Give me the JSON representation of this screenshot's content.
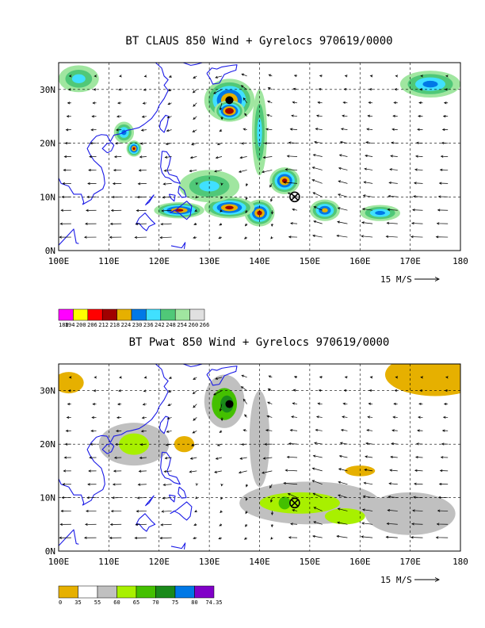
{
  "chart_data": [
    {
      "type": "heatmap",
      "title": "BT CLAUS 850 Wind + Gyrelocs 970619/0000",
      "x_ticks": [
        "100E",
        "110E",
        "120E",
        "130E",
        "140E",
        "150E",
        "160E",
        "170E",
        "180"
      ],
      "y_ticks": [
        "0N",
        "10N",
        "20N",
        "30N"
      ],
      "xlim": [
        100,
        180
      ],
      "ylim": [
        0,
        35
      ],
      "grid": true,
      "reference_vector_label": "15 M/S",
      "colorbar_labels": [
        "188",
        "194",
        "200",
        "206",
        "212",
        "218",
        "224",
        "230",
        "236",
        "242",
        "248",
        "254",
        "260",
        "266"
      ],
      "colorbar_colors": [
        "#ff00ff",
        "#ffff00",
        "#ff0000",
        "#a00000",
        "#e6b000",
        "#0078e6",
        "#40e0ff",
        "#50c878",
        "#a0e6a0",
        "#e0e0e0"
      ],
      "gyre_centers": [
        {
          "lon": 134,
          "lat": 28,
          "marker": "filled-circle"
        },
        {
          "lon": 147,
          "lat": 10,
          "marker": "circle-x"
        }
      ],
      "cloud_features": [
        {
          "lon": 134,
          "lat": 28,
          "rx": 5,
          "ry": 4,
          "peak": 3
        },
        {
          "lon": 134,
          "lat": 26,
          "rx": 3,
          "ry": 2,
          "peak": 4
        },
        {
          "lon": 145,
          "lat": 13,
          "rx": 3,
          "ry": 2.5,
          "peak": 3
        },
        {
          "lon": 140,
          "lat": 7,
          "rx": 3,
          "ry": 2.5,
          "peak": 3
        },
        {
          "lon": 134,
          "lat": 8,
          "rx": 5,
          "ry": 2,
          "peak": 3
        },
        {
          "lon": 124,
          "lat": 7.5,
          "rx": 5,
          "ry": 1.5,
          "peak": 3
        },
        {
          "lon": 115,
          "lat": 19,
          "rx": 1.5,
          "ry": 1.5,
          "peak": 3
        },
        {
          "lon": 153,
          "lat": 7.5,
          "rx": 3,
          "ry": 2,
          "peak": 2
        },
        {
          "lon": 164,
          "lat": 7,
          "rx": 4,
          "ry": 1.5,
          "peak": 1
        },
        {
          "lon": 174,
          "lat": 31,
          "rx": 6,
          "ry": 2.5,
          "peak": 1
        },
        {
          "lon": 113,
          "lat": 22,
          "rx": 2,
          "ry": 2,
          "peak": 1
        },
        {
          "lon": 104,
          "lat": 32,
          "rx": 4,
          "ry": 2.5,
          "peak": 0
        },
        {
          "lon": 130,
          "lat": 12,
          "rx": 6,
          "ry": 3,
          "peak": 0
        },
        {
          "lon": 140,
          "lat": 22,
          "rx": 1.5,
          "ry": 8,
          "peak": 0
        }
      ]
    },
    {
      "type": "heatmap",
      "title": "BT Pwat 850 Wind + Gyrelocs 970619/0000",
      "x_ticks": [
        "100E",
        "110E",
        "120E",
        "130E",
        "140E",
        "150E",
        "160E",
        "170E",
        "180"
      ],
      "y_ticks": [
        "0N",
        "10N",
        "20N",
        "30N"
      ],
      "xlim": [
        100,
        180
      ],
      "ylim": [
        0,
        35
      ],
      "grid": true,
      "reference_vector_label": "15 M/S",
      "colorbar_labels": [
        "0",
        "35",
        "55",
        "60",
        "65",
        "70",
        "75",
        "80",
        "74.35"
      ],
      "colorbar_colors": [
        "#e6b000",
        "#ffffff",
        "#c0c0c0",
        "#a8f000",
        "#44c000",
        "#1a8a1a",
        "#0078e6",
        "#8000c8"
      ],
      "gyre_centers": [
        {
          "lon": 134,
          "lat": 27.5,
          "marker": "filled-circle"
        },
        {
          "lon": 147,
          "lat": 9,
          "marker": "circle-x"
        }
      ],
      "moisture_features": [
        {
          "lon": 175,
          "lat": 33,
          "rx": 10,
          "ry": 4,
          "level": 0
        },
        {
          "lon": 102,
          "lat": 31.5,
          "rx": 3,
          "ry": 2,
          "level": 0
        },
        {
          "lon": 160,
          "lat": 15,
          "rx": 3,
          "ry": 1,
          "level": 0
        },
        {
          "lon": 125,
          "lat": 20,
          "rx": 2,
          "ry": 1.5,
          "level": 0
        },
        {
          "lon": 140,
          "lat": 21,
          "rx": 2,
          "ry": 9,
          "level": 1
        },
        {
          "lon": 133,
          "lat": 28,
          "rx": 4,
          "ry": 5,
          "level": 1
        },
        {
          "lon": 150,
          "lat": 9,
          "rx": 14,
          "ry": 4,
          "level": 1
        },
        {
          "lon": 170,
          "lat": 7,
          "rx": 9,
          "ry": 4,
          "level": 1
        },
        {
          "lon": 115,
          "lat": 20,
          "rx": 7,
          "ry": 4,
          "level": 1
        },
        {
          "lon": 133,
          "lat": 27.5,
          "rx": 2.5,
          "ry": 3,
          "level": 3
        },
        {
          "lon": 133.5,
          "lat": 27.5,
          "rx": 1.3,
          "ry": 1.6,
          "level": 4
        },
        {
          "lon": 148,
          "lat": 9,
          "rx": 8,
          "ry": 2,
          "level": 2
        },
        {
          "lon": 157,
          "lat": 6.5,
          "rx": 4,
          "ry": 1.5,
          "level": 2
        },
        {
          "lon": 115,
          "lat": 20,
          "rx": 3,
          "ry": 2,
          "level": 2
        },
        {
          "lon": 145,
          "lat": 9,
          "rx": 1.2,
          "ry": 1.2,
          "level": 3
        }
      ]
    }
  ]
}
